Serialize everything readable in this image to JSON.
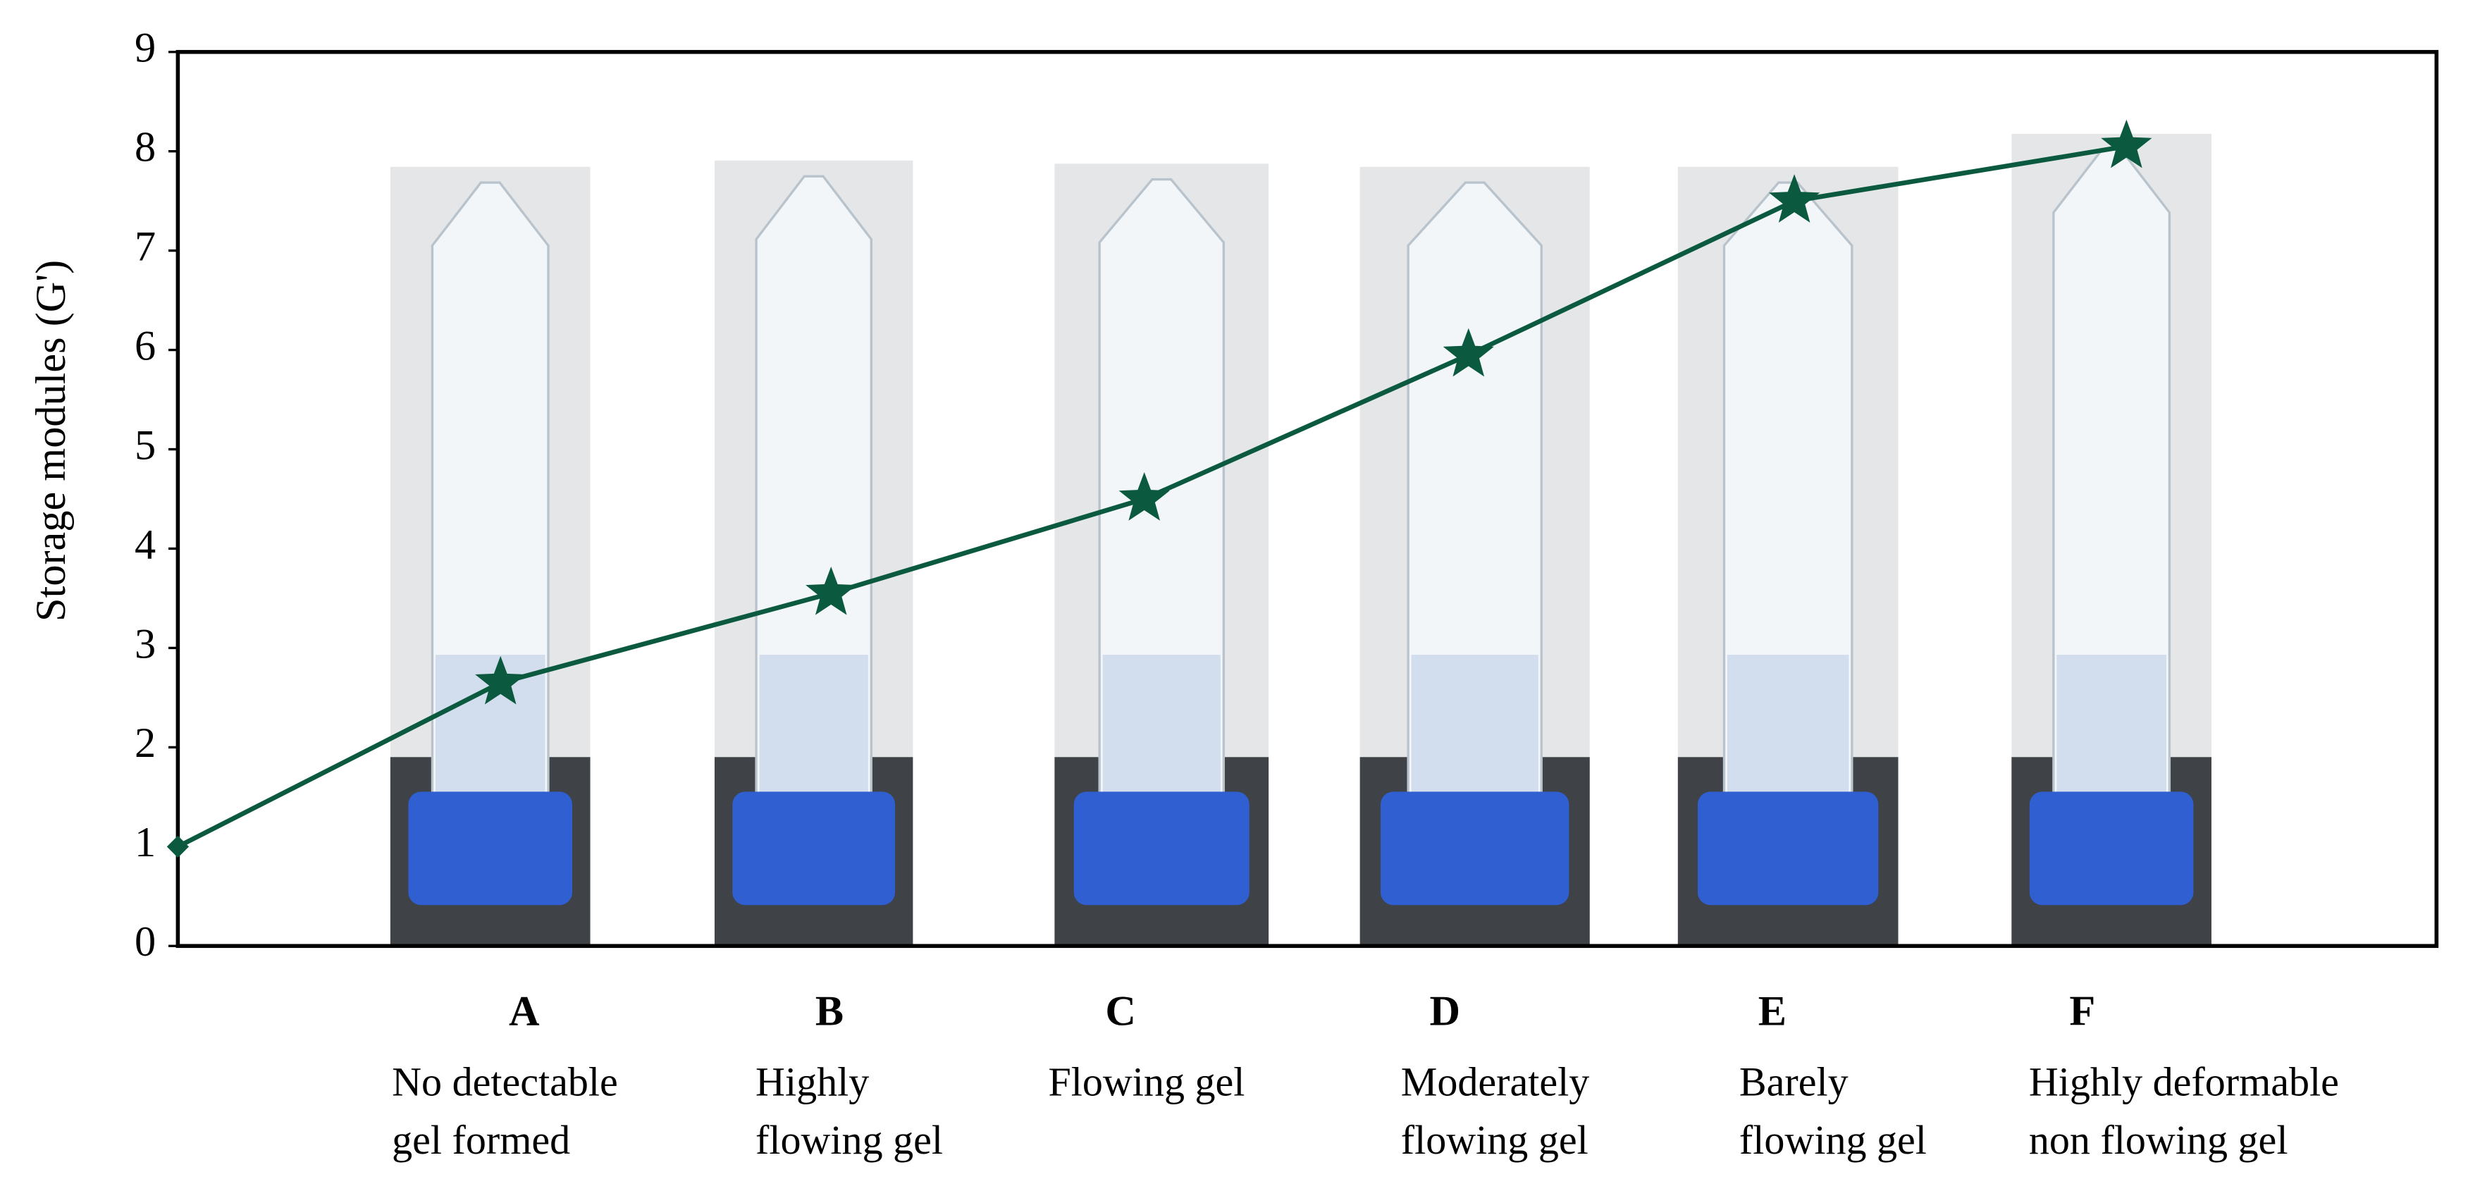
{
  "chart_data": {
    "type": "line",
    "y_label": "Storage modules (G')",
    "categories": [
      null,
      "A",
      "B",
      "C",
      "D",
      "E",
      "F"
    ],
    "descriptions": [
      null,
      [
        "No detectable",
        "gel formed"
      ],
      [
        "Highly",
        "flowing gel"
      ],
      [
        "Flowing gel"
      ],
      [
        "Moderately",
        "flowing gel"
      ],
      [
        "Barely",
        "flowing gel"
      ],
      [
        "Highly deformable",
        "non flowing gel"
      ]
    ],
    "values": [
      1,
      2.65,
      3.55,
      4.5,
      5.95,
      7.5,
      8.05
    ],
    "color": "#0b5a40",
    "ylim": [
      0,
      9
    ],
    "yticks": [
      0,
      1,
      2,
      3,
      4,
      5,
      6,
      7,
      8,
      9
    ]
  }
}
